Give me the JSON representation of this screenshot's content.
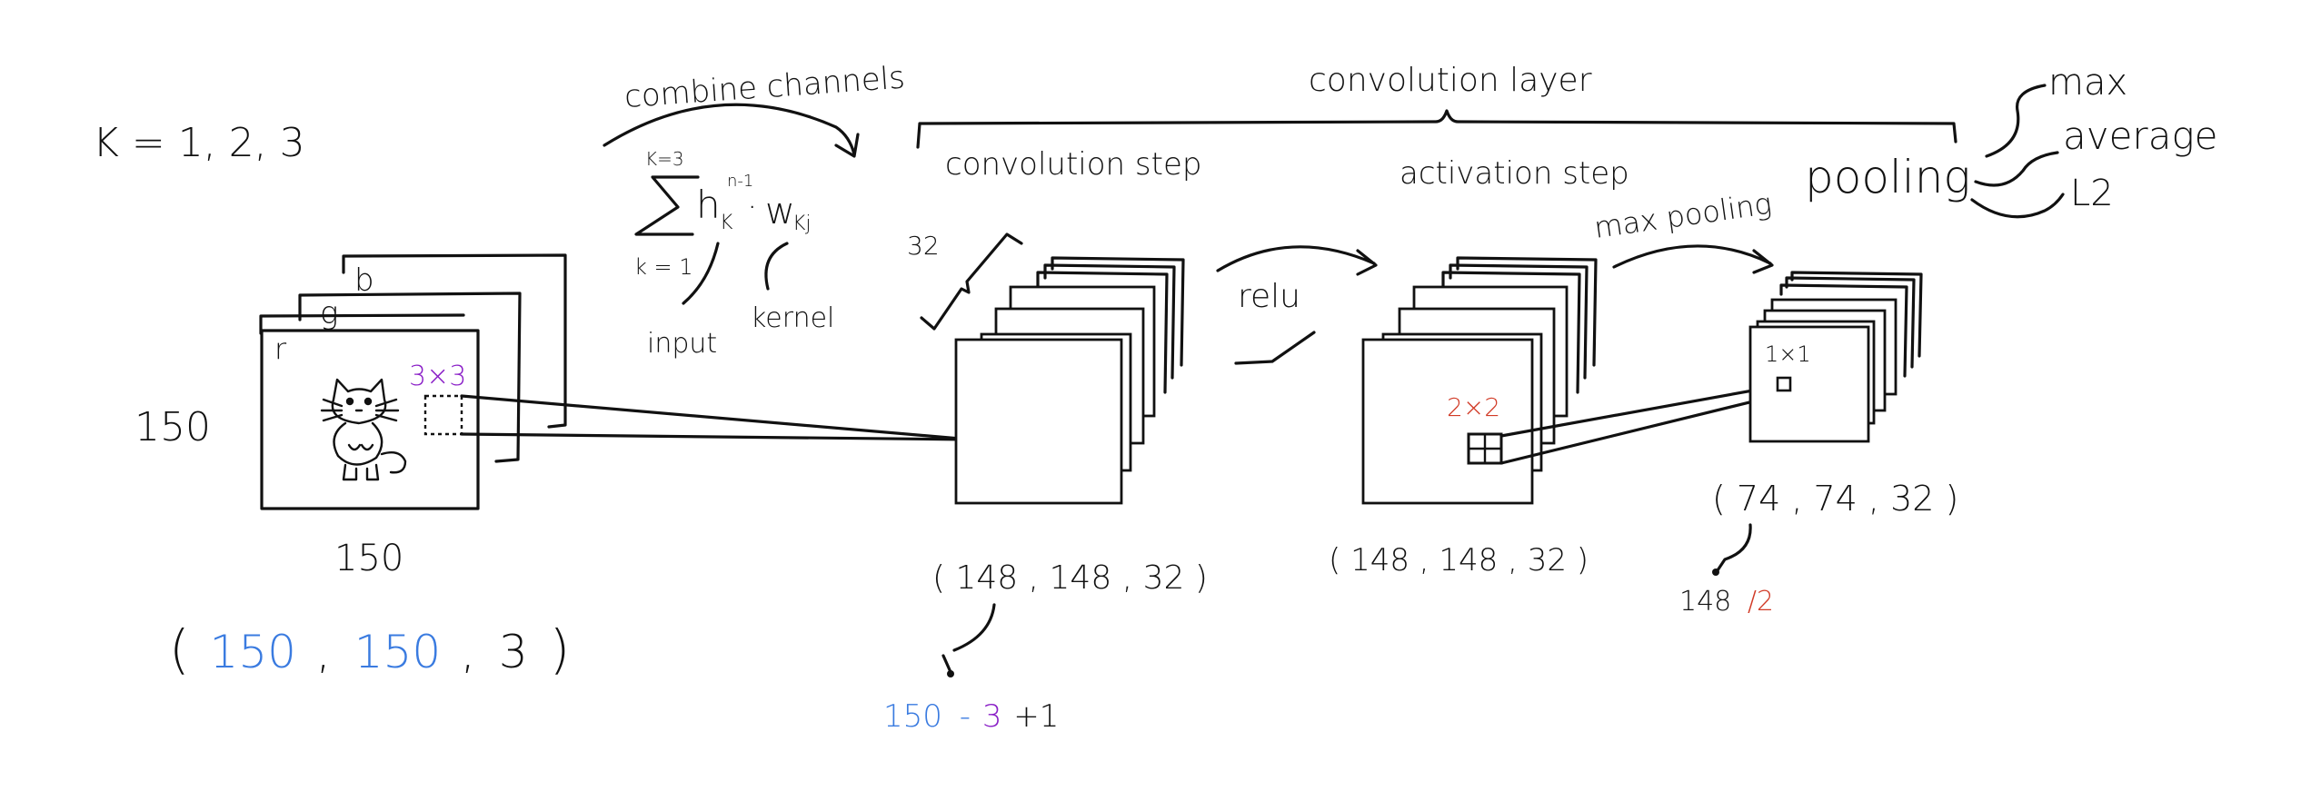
{
  "colors": {
    "ink": "#111111",
    "blue": "#3a7be0",
    "purple": "#8a1fc7",
    "red": "#d13a26"
  },
  "input": {
    "k_label": "K = 1, 2, 3",
    "channel_r": "r",
    "channel_g": "g",
    "channel_b": "b",
    "height_label": "150",
    "width_label": "150",
    "kernel_label": "3×3",
    "shape_open": "(",
    "shape_h": "150",
    "shape_comma1": ",",
    "shape_w": "150",
    "shape_comma2": ",",
    "shape_c": "3",
    "shape_close": ")",
    "image_icon": "cat-icon"
  },
  "combine": {
    "title": "combine channels",
    "sum_upper": "K=3",
    "sum_lower": "k = 1",
    "term_h": "h",
    "term_sup": "n-1",
    "term_sub": "K",
    "term_dot": "·",
    "term_w": "w",
    "term_wsub": "Kj",
    "input_label": "input",
    "kernel_label": "kernel"
  },
  "conv_layer": {
    "title": "convolution layer",
    "conv_step": "convolution step",
    "activation_step": "activation step",
    "pooling": "pooling",
    "filters_count": "32",
    "relu": "relu",
    "max_pooling": "max pooling",
    "conv_shape": "( 148 , 148 , 32 )",
    "calc_a": "150",
    "calc_b": "-",
    "calc_c": "3",
    "calc_d": "+1",
    "act_shape": "( 148 , 148 , 32 )",
    "act_kernel": "2×2",
    "pool_kernel": "1×1",
    "pool_shape": "( 74 , 74 , 32 )",
    "pool_calc_a": "148",
    "pool_calc_b": "/2"
  },
  "pooling_types": [
    "max",
    "average",
    "L2"
  ]
}
